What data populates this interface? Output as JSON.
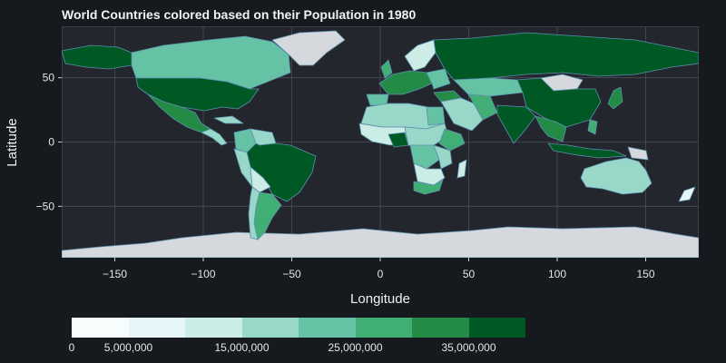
{
  "chart_data": {
    "type": "choropleth",
    "title": "World Countries colored based on their Population in 1980",
    "xlabel": "Longitude",
    "ylabel": "Latitude",
    "xlim": [
      -180,
      180
    ],
    "ylim": [
      -90,
      90
    ],
    "x_ticks": [
      -150,
      -100,
      -50,
      0,
      50,
      100,
      150
    ],
    "y_ticks": [
      -50,
      0,
      50
    ],
    "x_tick_labels": [
      "−150",
      "−100",
      "−50",
      "0",
      "50",
      "100",
      "150"
    ],
    "y_tick_labels": [
      "−50",
      "0",
      "50"
    ],
    "grid": true,
    "colorbar": {
      "min": 0,
      "max": 40000000,
      "ticks": [
        0,
        5000000,
        15000000,
        25000000,
        35000000
      ],
      "tick_labels": [
        "0",
        "5,000,000",
        "15,000,000",
        "25,000,000",
        "35,000,000"
      ],
      "colors": [
        "#f7fcfd",
        "#e5f5f9",
        "#ccece6",
        "#99d8c9",
        "#66c2a4",
        "#41ae76",
        "#238b45",
        "#005824"
      ]
    },
    "colors": {
      "no_data": "#d5d9dd",
      "border": "#5b8fb0",
      "background": "#23262d"
    }
  }
}
